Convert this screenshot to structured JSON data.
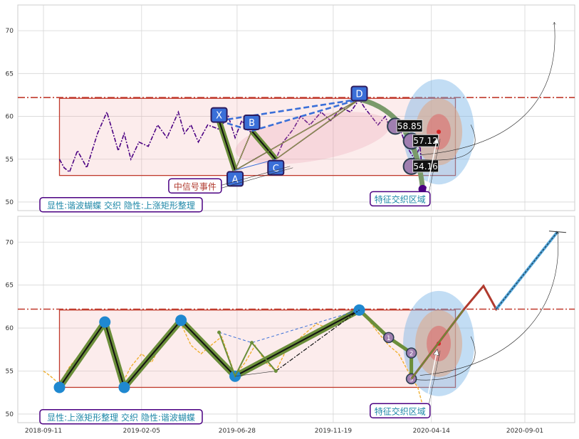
{
  "chart_data": [
    {
      "type": "line",
      "panel": "top",
      "ylim": [
        49,
        73
      ],
      "yticks": [
        50,
        55,
        60,
        65,
        70
      ],
      "grid": true,
      "price_line": {
        "style": "dash-dot",
        "color": "#4b0082",
        "x": [
          "2018-10-05",
          "2018-10-12",
          "2018-10-20",
          "2018-11-01",
          "2018-11-15",
          "2018-12-01",
          "2018-12-15",
          "2019-01-01",
          "2019-01-10",
          "2019-01-20",
          "2019-02-01",
          "2019-02-15",
          "2019-03-01",
          "2019-03-15",
          "2019-04-01",
          "2019-04-10",
          "2019-04-20",
          "2019-05-01",
          "2019-05-15",
          "2019-06-01",
          "2019-06-15",
          "2019-06-25",
          "2019-07-05",
          "2019-07-20",
          "2019-08-01",
          "2019-08-15",
          "2019-08-25",
          "2019-09-05",
          "2019-09-20",
          "2019-10-01",
          "2019-10-15",
          "2019-11-01",
          "2019-11-15",
          "2019-12-01",
          "2019-12-15",
          "2019-12-28",
          "2020-01-05",
          "2020-01-15",
          "2020-01-25",
          "2020-02-05",
          "2020-02-15",
          "2020-02-25",
          "2020-03-05",
          "2020-03-12",
          "2020-03-20",
          "2020-03-28",
          "2020-04-03"
        ],
        "y": [
          55,
          54,
          53.5,
          56,
          54,
          58,
          60.5,
          56,
          58,
          55,
          57,
          56.5,
          59,
          57.5,
          60.5,
          58,
          59,
          57,
          59,
          58.5,
          60,
          57.5,
          59.5,
          58,
          57,
          56,
          55,
          57,
          58.5,
          60,
          59,
          60.5,
          59.5,
          61,
          60.5,
          62,
          61,
          60,
          59,
          60,
          58,
          59,
          57,
          56,
          55,
          56.5,
          51
        ]
      },
      "pattern": {
        "name": "谐波蝴蝶",
        "points": [
          {
            "label": "X",
            "date": "2019-06-01",
            "price": 59.5
          },
          {
            "label": "A",
            "date": "2019-06-25",
            "price": 53.7
          },
          {
            "label": "B",
            "date": "2019-07-20",
            "price": 58.3
          },
          {
            "label": "C",
            "date": "2019-08-25",
            "price": 55.0
          },
          {
            "label": "D",
            "date": "2019-12-28",
            "price": 62.0
          }
        ]
      },
      "rectangle": {
        "start": "2018-10-05",
        "end": "2020-05-20",
        "low": 53.1,
        "high": 62.1
      },
      "resistance_level": 62.2,
      "targets": [
        {
          "label": "58.85",
          "date": "2020-02-20",
          "price": 58.85
        },
        {
          "label": "57.12",
          "date": "2020-03-15",
          "price": 57.12
        },
        {
          "label": "54.16",
          "date": "2020-03-15",
          "price": 54.16
        }
      ],
      "zone_center": {
        "date": "2020-04-25",
        "price": 58.2
      },
      "annotations": [
        "中信号事件",
        "特征交织区域"
      ],
      "summary": "显性:谐波蝴蝶 交织 隐性:上涨矩形整理"
    },
    {
      "type": "line",
      "panel": "bottom",
      "ylim": [
        49,
        73
      ],
      "yticks": [
        50,
        55,
        60,
        65,
        70
      ],
      "xticks": [
        "2018-09-11",
        "2019-02-05",
        "2019-06-28",
        "2019-11-19",
        "2020-04-14",
        "2020-09-01"
      ],
      "grid": true,
      "price_line": {
        "style": "dashed",
        "color": "#f0b030",
        "x": [
          "2018-09-11",
          "2018-09-20",
          "2018-10-05",
          "2018-10-20",
          "2018-11-05",
          "2018-11-25",
          "2018-12-12",
          "2018-12-25",
          "2019-01-10",
          "2019-01-20",
          "2019-02-05",
          "2019-02-20",
          "2019-03-05",
          "2019-03-20",
          "2019-04-05",
          "2019-04-20",
          "2019-05-05",
          "2019-05-20",
          "2019-06-05",
          "2019-06-25",
          "2019-07-10",
          "2019-07-25",
          "2019-08-10",
          "2019-08-25",
          "2019-09-10",
          "2019-09-25",
          "2019-10-10",
          "2019-10-25",
          "2019-11-10",
          "2019-11-25",
          "2019-12-10",
          "2019-12-28",
          "2020-01-10",
          "2020-01-25",
          "2020-02-10",
          "2020-02-25",
          "2020-03-10",
          "2020-03-25",
          "2020-04-01"
        ],
        "y": [
          55,
          54.5,
          53.5,
          55.5,
          57,
          59,
          60.5,
          57,
          54,
          55.5,
          57,
          56,
          58,
          59.5,
          60.5,
          58,
          57,
          58,
          59,
          54.5,
          56,
          58,
          56,
          55,
          57.5,
          58.5,
          59.5,
          60.5,
          60,
          60.5,
          61,
          62,
          61,
          59.5,
          58,
          57,
          55,
          53,
          51
        ]
      },
      "rectangle_wave": [
        {
          "date": "2018-10-05",
          "price": 53.1
        },
        {
          "date": "2018-12-12",
          "price": 60.7
        },
        {
          "date": "2019-01-10",
          "price": 53.1
        },
        {
          "date": "2019-04-05",
          "price": 60.9
        },
        {
          "date": "2019-06-25",
          "price": 54.4
        },
        {
          "date": "2019-12-28",
          "price": 62.1
        },
        {
          "date": "2020-02-10",
          "price": 58.9
        },
        {
          "date": "2020-03-15",
          "price": 57.1
        },
        {
          "date": "2020-03-15",
          "price": 54.1
        }
      ],
      "numbered_points": [
        "1",
        "2",
        "3"
      ],
      "projection": [
        {
          "date": "2020-03-15",
          "price": 54.1
        },
        {
          "date": "2020-06-01",
          "price": 62.1
        },
        {
          "date": "2020-07-01",
          "price": 64.9
        },
        {
          "date": "2020-07-20",
          "price": 62.2
        },
        {
          "date": "2020-10-20",
          "price": 71.2
        }
      ],
      "rectangle": {
        "start": "2018-10-05",
        "end": "2020-05-20",
        "low": 53.1,
        "high": 62.1
      },
      "resistance_level": 62.2,
      "annotations": [
        "特征交织区域"
      ],
      "summary": "显性:上涨矩形整理 交织 隐性:谐波蝴蝶"
    }
  ]
}
